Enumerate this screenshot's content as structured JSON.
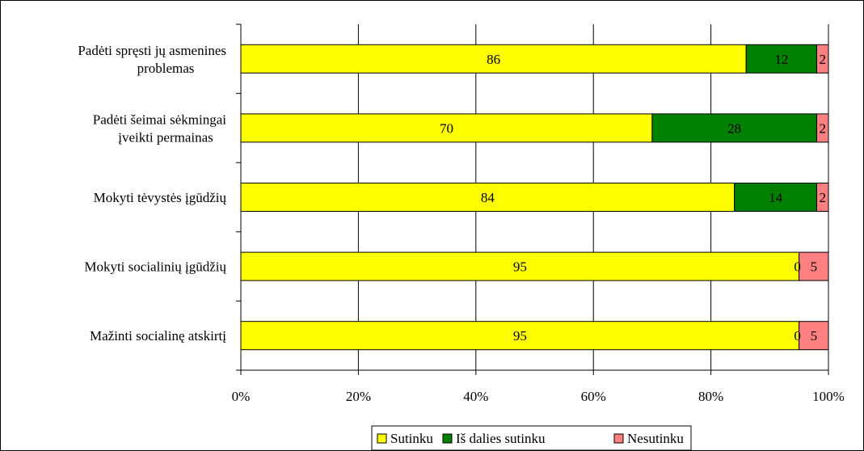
{
  "chart_data": {
    "type": "bar",
    "orientation": "horizontal",
    "stacked": "percent",
    "categories": [
      [
        "Padėti spręsti jų asmenines",
        "problemas"
      ],
      [
        "Padėti šeimai sėkmingai",
        "įveikti permainas"
      ],
      [
        "Mokyti tėvystės įgūdžių"
      ],
      [
        "Mokyti socialinių įgūdžių"
      ],
      [
        "Mažinti socialinę atskirtį"
      ]
    ],
    "series": [
      {
        "name": "Sutinku",
        "color": "#FFFF00",
        "values": [
          86,
          70,
          84,
          95,
          95
        ],
        "labels": [
          "86",
          "70",
          "84",
          "95",
          "95"
        ]
      },
      {
        "name": "Iš dalies sutinku",
        "color": "#008000",
        "values": [
          12,
          28,
          14,
          0,
          0
        ],
        "labels": [
          "12",
          "28",
          "14",
          "0",
          "0"
        ]
      },
      {
        "name": "Nesutinku",
        "color": "#FF8080",
        "values": [
          2,
          2,
          2,
          5,
          5
        ],
        "labels": [
          "2",
          "2",
          "2",
          "5",
          "5"
        ]
      }
    ],
    "xlim": [
      0,
      100
    ],
    "xticks": [
      "0%",
      "20%",
      "40%",
      "60%",
      "80%",
      "100%"
    ],
    "grid": true,
    "legend": "bottom"
  }
}
